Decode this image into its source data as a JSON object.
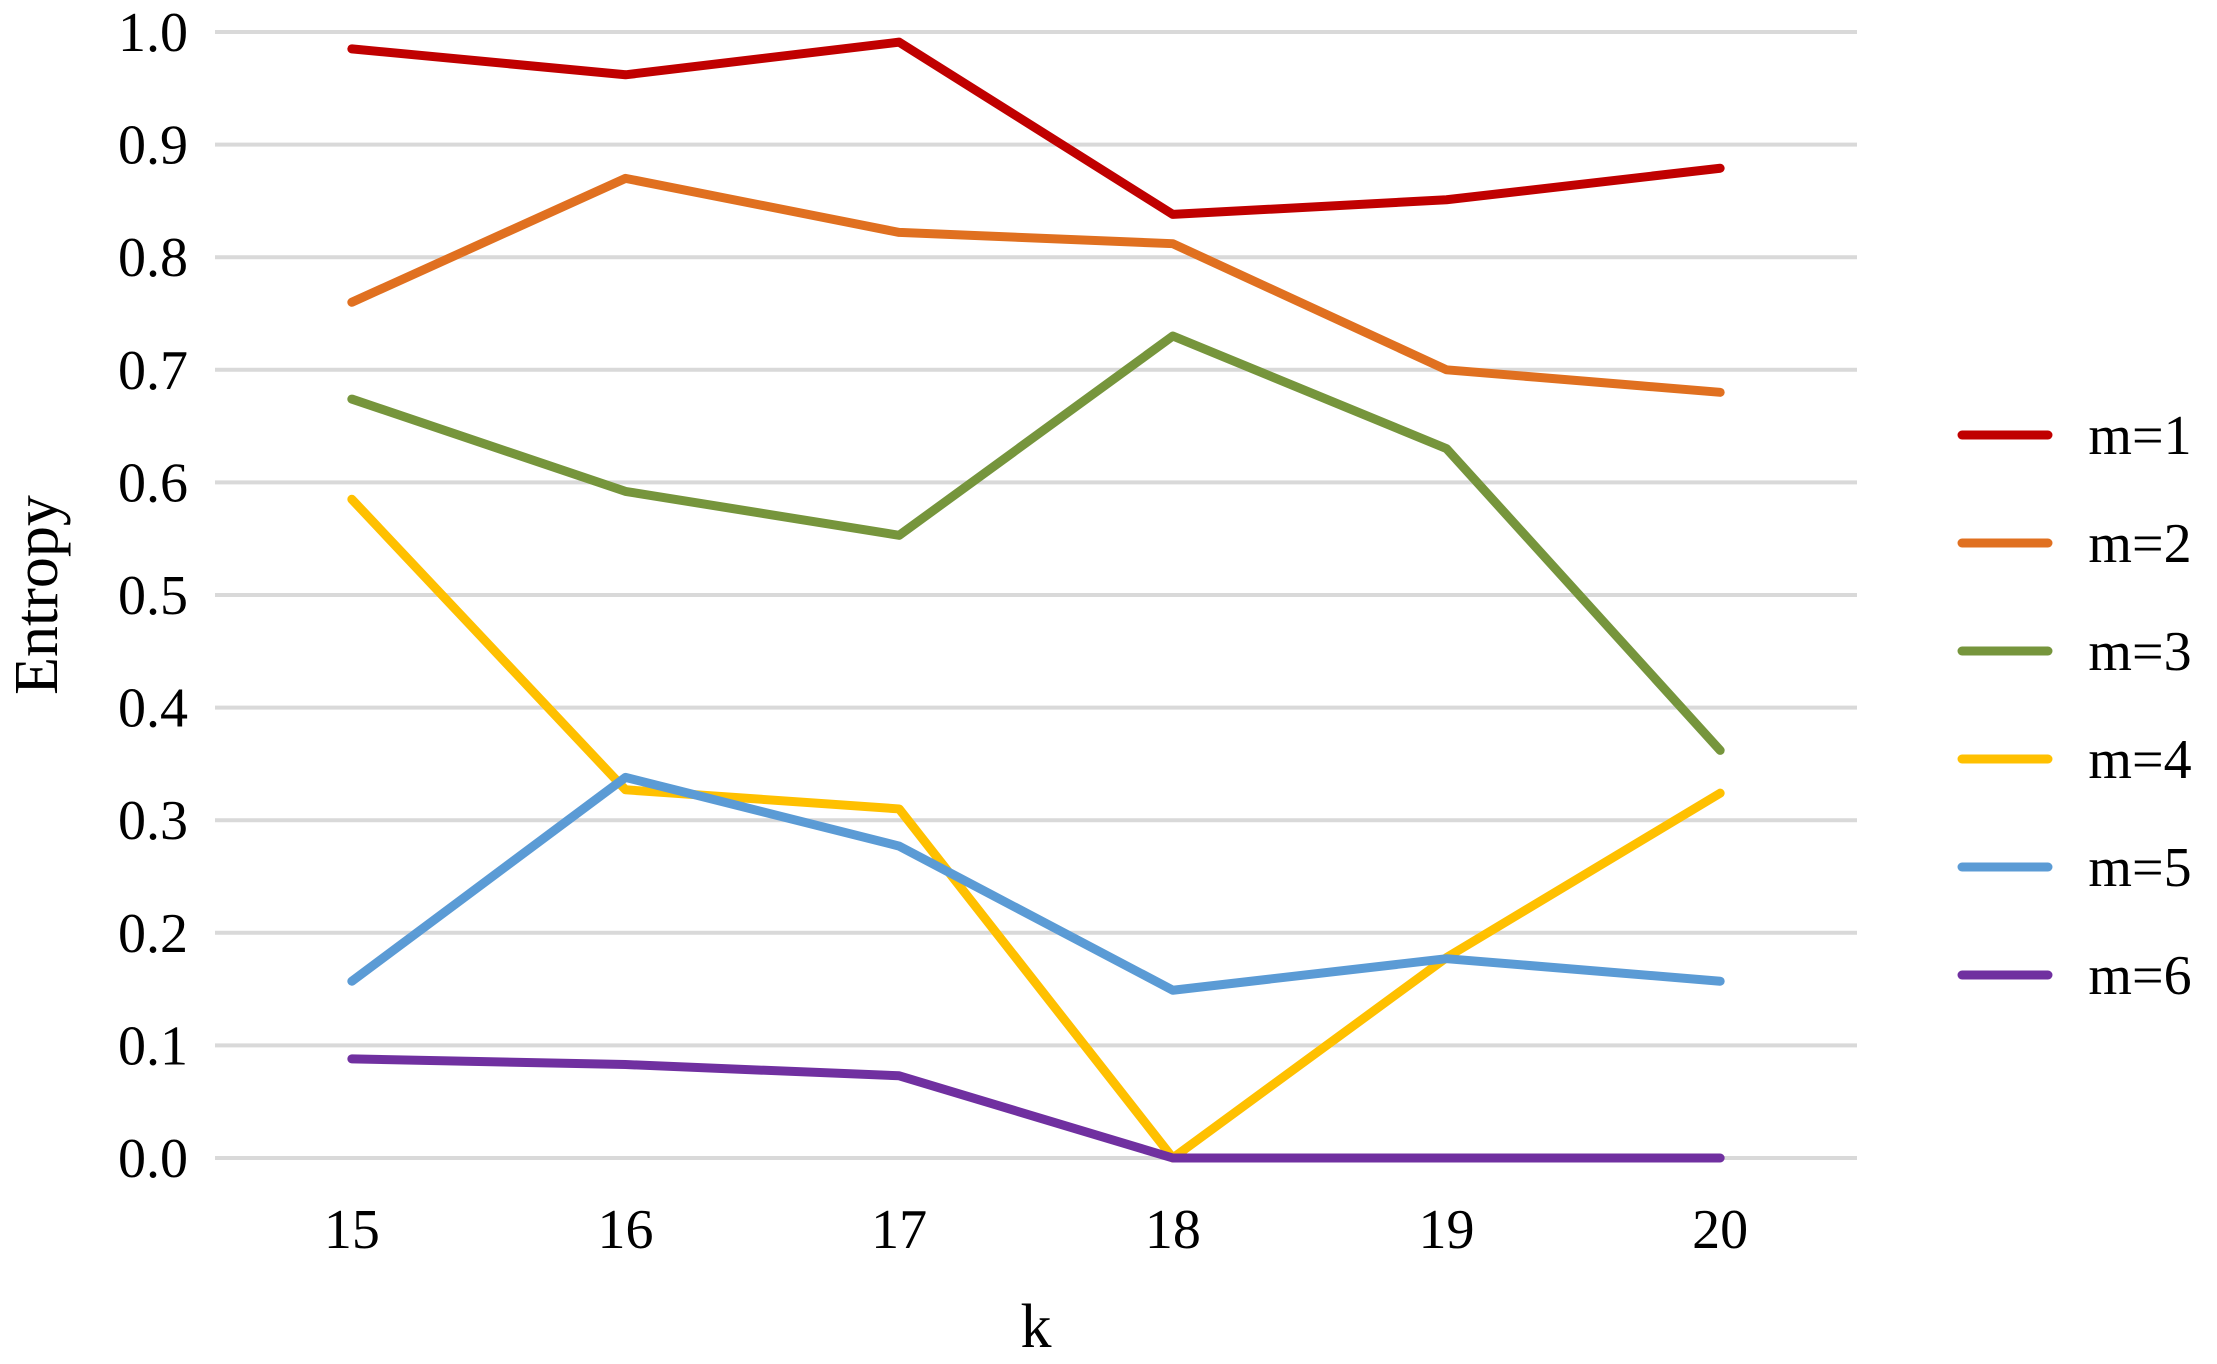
{
  "chart_data": {
    "type": "line",
    "x": [
      15,
      16,
      17,
      18,
      19,
      20
    ],
    "xlabel": "k",
    "ylabel": "Entropy",
    "ylim": [
      0,
      1
    ],
    "yticks": [
      "0.0",
      "0.1",
      "0.2",
      "0.3",
      "0.4",
      "0.5",
      "0.6",
      "0.7",
      "0.8",
      "0.9",
      "1.0"
    ],
    "grid": true,
    "legend": "right",
    "series": [
      {
        "name": "m=1",
        "color": "#c00000",
        "values": [
          0.985,
          0.962,
          0.991,
          0.838,
          0.851,
          0.879
        ]
      },
      {
        "name": "m=2",
        "color": "#e07020",
        "values": [
          0.76,
          0.87,
          0.822,
          0.812,
          0.7,
          0.68
        ]
      },
      {
        "name": "m=3",
        "color": "#76953c",
        "values": [
          0.674,
          0.592,
          0.553,
          0.73,
          0.63,
          0.362
        ]
      },
      {
        "name": "m=4",
        "color": "#ffc000",
        "values": [
          0.585,
          0.327,
          0.31,
          0.0,
          0.178,
          0.324
        ]
      },
      {
        "name": "m=5",
        "color": "#5b9bd5",
        "values": [
          0.157,
          0.338,
          0.277,
          0.149,
          0.177,
          0.157
        ]
      },
      {
        "name": "m=6",
        "color": "#7030a0",
        "values": [
          0.088,
          0.083,
          0.073,
          0.0,
          0.0,
          0.0
        ]
      }
    ]
  }
}
